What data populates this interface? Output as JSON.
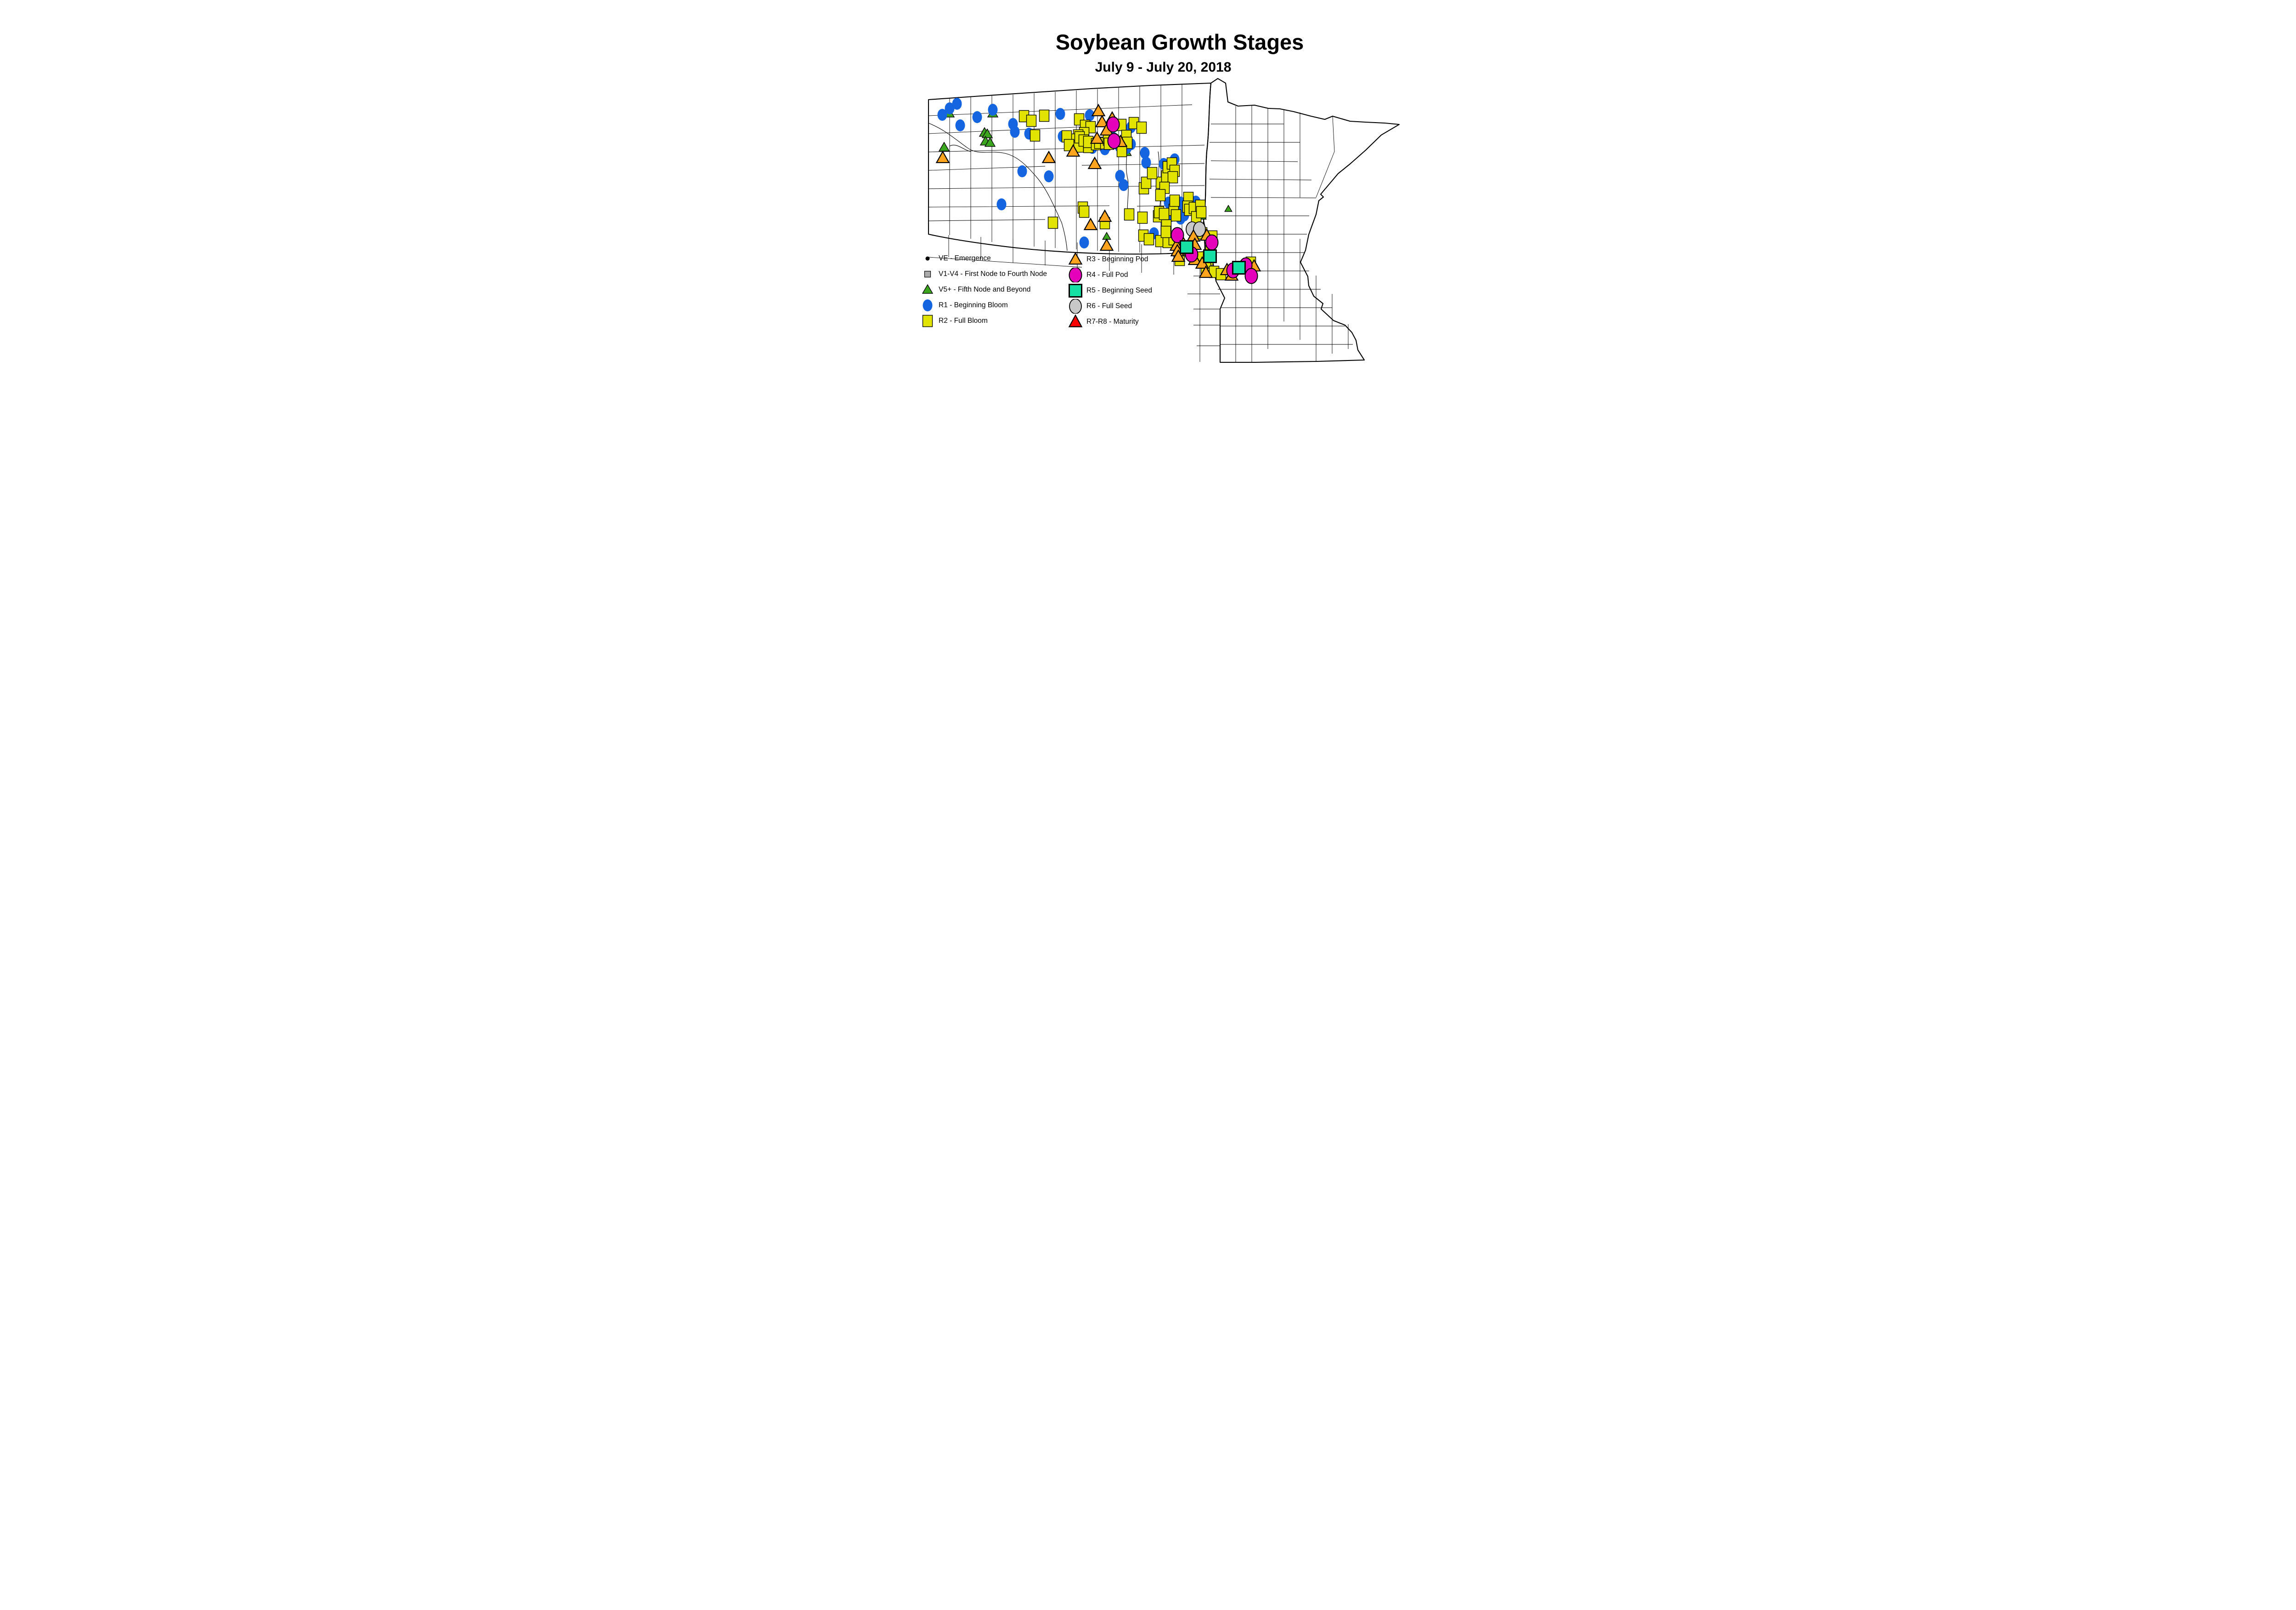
{
  "title": {
    "main": "Soybean Growth Stages",
    "subtitle": "July 9 - July 20, 2018"
  },
  "map": {
    "region": "North Dakota and Minnesota county map with soybean growth stage observations",
    "background": "#ffffff",
    "border_color": "#000000"
  },
  "stages": {
    "ve": {
      "label": "VE - Emergence",
      "color": "#000000",
      "shape": "dot"
    },
    "v1v4": {
      "label": "V1-V4 - First Node to Fourth Node",
      "color": "#ABABAB",
      "shape": "square"
    },
    "v5": {
      "label": "V5+ - Fifth Node and Beyond",
      "color": "#3CA51E",
      "shape": "triangle"
    },
    "r1": {
      "label": "R1 - Beginning Bloom",
      "color": "#1565E0",
      "shape": "circle"
    },
    "r2": {
      "label": "R2 - Full Bloom",
      "color": "#E2E300",
      "shape": "square"
    },
    "r3": {
      "label": "R3 - Beginning Pod",
      "color": "#FFA41E",
      "shape": "triangle"
    },
    "r4": {
      "label": "R4 - Full Pod",
      "color": "#E500B9",
      "shape": "circle"
    },
    "r5": {
      "label": "R5 - Beginning Seed",
      "color": "#17E0A4",
      "shape": "square"
    },
    "r6": {
      "label": "R6 - Full Seed",
      "color": "#C8C8C8",
      "shape": "circle"
    },
    "r78": {
      "label": "R7-R8 - Maturity",
      "color": "#FF0000",
      "shape": "triangle"
    }
  },
  "legend": {
    "left": [
      "ve",
      "v1v4",
      "v5",
      "r1",
      "r2"
    ],
    "right": [
      "r3",
      "r4",
      "r5",
      "r6",
      "r78"
    ]
  },
  "map_markers": {
    "v5": [
      [
        351,
        247,
        1
      ],
      [
        446,
        247,
        1
      ],
      [
        428,
        289,
        1
      ],
      [
        434,
        292,
        1
      ],
      [
        430,
        308,
        1
      ],
      [
        440,
        311,
        1
      ],
      [
        340,
        321,
        1
      ],
      [
        694,
        322,
        0.65
      ],
      [
        741,
        334,
        0.6
      ],
      [
        827,
        379,
        0.65
      ],
      [
        837,
        453,
        0.8
      ],
      [
        845,
        473,
        0.7
      ],
      [
        902,
        471,
        0.8
      ],
      [
        959,
        455,
        0.7
      ],
      [
        694,
        515,
        0.8
      ]
    ],
    "r1": [
      [
        368,
        226
      ],
      [
        352,
        236
      ],
      [
        336,
        250
      ],
      [
        446,
        239
      ],
      [
        412,
        255
      ],
      [
        375,
        273
      ],
      [
        490,
        270
      ],
      [
        494,
        287
      ],
      [
        525,
        291
      ],
      [
        593,
        248
      ],
      [
        657,
        251
      ],
      [
        598,
        297
      ],
      [
        646,
        298
      ],
      [
        663,
        322
      ],
      [
        690,
        325
      ],
      [
        747,
        277
      ],
      [
        708,
        300
      ],
      [
        722,
        319
      ],
      [
        738,
        322
      ],
      [
        747,
        314
      ],
      [
        777,
        333
      ],
      [
        780,
        354
      ],
      [
        818,
        357
      ],
      [
        838,
        369
      ],
      [
        842,
        347
      ],
      [
        723,
        383
      ],
      [
        731,
        403
      ],
      [
        829,
        441
      ],
      [
        855,
        441
      ],
      [
        834,
        455
      ],
      [
        858,
        453
      ],
      [
        888,
        439
      ],
      [
        888,
        461
      ],
      [
        832,
        471
      ],
      [
        863,
        469
      ],
      [
        824,
        478
      ],
      [
        855,
        476
      ],
      [
        465,
        445
      ],
      [
        510,
        373
      ],
      [
        568,
        384
      ],
      [
        645,
        528
      ],
      [
        797,
        508
      ]
    ],
    "r2": [
      [
        514,
        253
      ],
      [
        530,
        263
      ],
      [
        558,
        252
      ],
      [
        538,
        295
      ],
      [
        634,
        260
      ],
      [
        647,
        274
      ],
      [
        659,
        277
      ],
      [
        645,
        290
      ],
      [
        632,
        295
      ],
      [
        616,
        304
      ],
      [
        626,
        319
      ],
      [
        633,
        319
      ],
      [
        607,
        297
      ],
      [
        612,
        316
      ],
      [
        654,
        320
      ],
      [
        726,
        272
      ],
      [
        753,
        268
      ],
      [
        770,
        278
      ],
      [
        737,
        296
      ],
      [
        739,
        311
      ],
      [
        635,
        299
      ],
      [
        644,
        306
      ],
      [
        654,
        309
      ],
      [
        671,
        314
      ],
      [
        678,
        311
      ],
      [
        691,
        312
      ],
      [
        697,
        304
      ],
      [
        699,
        313
      ],
      [
        727,
        329
      ],
      [
        743,
        467
      ],
      [
        772,
        474
      ],
      [
        775,
        410
      ],
      [
        780,
        398
      ],
      [
        812,
        398
      ],
      [
        824,
        384
      ],
      [
        793,
        377
      ],
      [
        827,
        364
      ],
      [
        836,
        356
      ],
      [
        842,
        372
      ],
      [
        838,
        386
      ],
      [
        820,
        409
      ],
      [
        811,
        425
      ],
      [
        872,
        431
      ],
      [
        870,
        450
      ],
      [
        874,
        457
      ],
      [
        884,
        453
      ],
      [
        840,
        457
      ],
      [
        842,
        437
      ],
      [
        845,
        469
      ],
      [
        889,
        473
      ],
      [
        898,
        448
      ],
      [
        900,
        462
      ],
      [
        806,
        471
      ],
      [
        808,
        462
      ],
      [
        819,
        466
      ],
      [
        577,
        485
      ],
      [
        642,
        452
      ],
      [
        645,
        461
      ],
      [
        690,
        486
      ],
      [
        774,
        513
      ],
      [
        786,
        521
      ],
      [
        811,
        525
      ],
      [
        827,
        527
      ],
      [
        840,
        521
      ],
      [
        824,
        491
      ],
      [
        823,
        505
      ],
      [
        902,
        508
      ],
      [
        924,
        515
      ],
      [
        920,
        547
      ],
      [
        860,
        545
      ],
      [
        853,
        566
      ],
      [
        894,
        561
      ],
      [
        915,
        565
      ],
      [
        910,
        583
      ],
      [
        928,
        592
      ],
      [
        943,
        597
      ],
      [
        1008,
        572
      ]
    ],
    "r3": [
      [
        337,
        344
      ],
      [
        568,
        344
      ],
      [
        621,
        330
      ],
      [
        668,
        357
      ],
      [
        676,
        242
      ],
      [
        684,
        266
      ],
      [
        706,
        258
      ],
      [
        694,
        284
      ],
      [
        673,
        302
      ],
      [
        724,
        309
      ],
      [
        690,
        472
      ],
      [
        659,
        490
      ],
      [
        694,
        535
      ],
      [
        883,
        515
      ],
      [
        912,
        513
      ],
      [
        857,
        524
      ],
      [
        846,
        535
      ],
      [
        848,
        547
      ],
      [
        850,
        559
      ],
      [
        886,
        533
      ],
      [
        886,
        566
      ],
      [
        902,
        574
      ],
      [
        910,
        594
      ],
      [
        956,
        588
      ],
      [
        1015,
        580
      ],
      [
        966,
        600
      ]
    ],
    "r4": [
      [
        708,
        271
      ],
      [
        710,
        307
      ],
      [
        848,
        512
      ],
      [
        923,
        528
      ],
      [
        879,
        554
      ],
      [
        969,
        589
      ],
      [
        997,
        578
      ],
      [
        1009,
        601
      ]
    ],
    "r5": [
      [
        868,
        538
      ],
      [
        919,
        558
      ],
      [
        982,
        583
      ]
    ],
    "r6": [
      [
        880,
        499
      ],
      [
        896,
        499
      ]
    ],
    "ve": [],
    "v1v4": [],
    "r78": []
  }
}
